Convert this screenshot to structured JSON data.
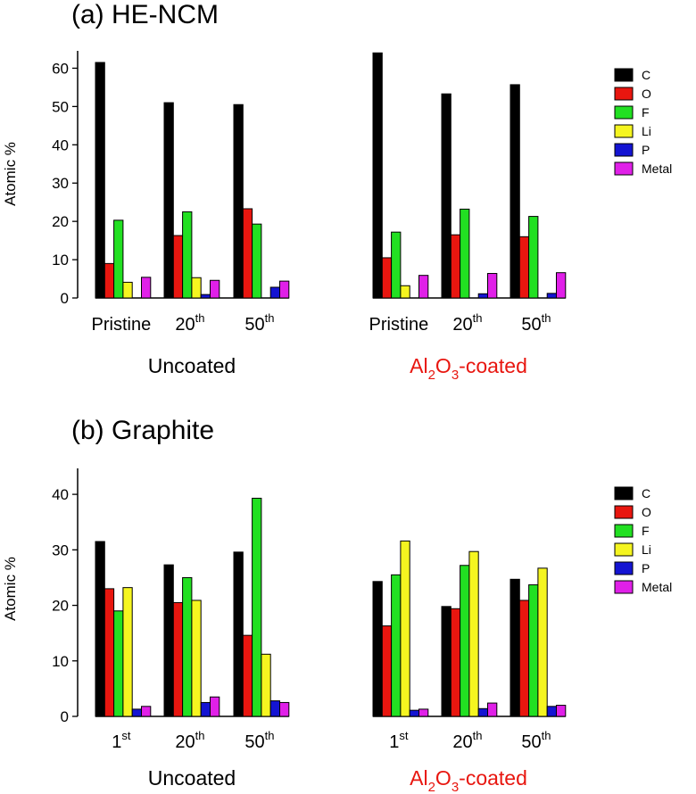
{
  "colors": {
    "C": "#000000",
    "O": "#e8160f",
    "F": "#22e022",
    "Li": "#f5f520",
    "P": "#1414d2",
    "Metal": "#e020e8",
    "coated_label": "#e8160f",
    "uncoated_label": "#000000"
  },
  "chart_data": [
    {
      "type": "bar",
      "title": "(a) HE-NCM",
      "ylabel": "Atomic %",
      "ylim": [
        0,
        65
      ],
      "yticks": [
        "0",
        "10",
        "20",
        "30",
        "40",
        "50",
        "60"
      ],
      "legend": [
        "C",
        "O",
        "F",
        "Li",
        "P",
        "Metal"
      ],
      "legend_position": "right",
      "groups": [
        {
          "name": "Uncoated",
          "categories": [
            {
              "label": "Pristine",
              "sup": ""
            },
            {
              "label": "20",
              "sup": "th"
            },
            {
              "label": "50",
              "sup": "th"
            }
          ]
        },
        {
          "name": "Al2O3-coated",
          "name_parts": [
            "Al",
            "2",
            "O",
            "3",
            "-coated"
          ],
          "categories": [
            {
              "label": "Pristine",
              "sup": ""
            },
            {
              "label": "20",
              "sup": "th"
            },
            {
              "label": "50",
              "sup": "th"
            }
          ]
        }
      ],
      "series": [
        {
          "name": "C",
          "values": [
            61.5,
            51,
            50.5,
            64,
            53.3,
            55.7
          ]
        },
        {
          "name": "O",
          "values": [
            9,
            16.3,
            23.3,
            10.5,
            16.5,
            16
          ]
        },
        {
          "name": "F",
          "values": [
            20.3,
            22.5,
            19.3,
            17.2,
            23.2,
            21.3
          ]
        },
        {
          "name": "Li",
          "values": [
            4.1,
            5.3,
            0,
            3.2,
            0,
            0
          ]
        },
        {
          "name": "P",
          "values": [
            0,
            0.9,
            2.8,
            0,
            1.1,
            1.2
          ]
        },
        {
          "name": "Metal",
          "values": [
            5.4,
            4.6,
            4.4,
            5.9,
            6.4,
            6.6
          ]
        }
      ]
    },
    {
      "type": "bar",
      "title": "(b) Graphite",
      "ylabel": "Atomic %",
      "ylim": [
        0,
        45
      ],
      "yticks": [
        "0",
        "10",
        "20",
        "30",
        "40"
      ],
      "legend": [
        "C",
        "O",
        "F",
        "Li",
        "P",
        "Metal"
      ],
      "legend_position": "right",
      "groups": [
        {
          "name": "Uncoated",
          "categories": [
            {
              "label": "1",
              "sup": "st"
            },
            {
              "label": "20",
              "sup": "th"
            },
            {
              "label": "50",
              "sup": "th"
            }
          ]
        },
        {
          "name": "Al2O3-coated",
          "name_parts": [
            "Al",
            "2",
            "O",
            "3",
            "-coated"
          ],
          "categories": [
            {
              "label": "1",
              "sup": "st"
            },
            {
              "label": "20",
              "sup": "th"
            },
            {
              "label": "50",
              "sup": "th"
            }
          ]
        }
      ],
      "series": [
        {
          "name": "C",
          "values": [
            31.5,
            27.3,
            29.6,
            24.3,
            19.8,
            24.7
          ]
        },
        {
          "name": "O",
          "values": [
            23,
            20.5,
            14.6,
            16.3,
            19.4,
            20.9
          ]
        },
        {
          "name": "F",
          "values": [
            19,
            25,
            39.3,
            25.5,
            27.2,
            23.7
          ]
        },
        {
          "name": "Li",
          "values": [
            23.2,
            20.9,
            11.2,
            31.6,
            29.7,
            26.7
          ]
        },
        {
          "name": "P",
          "values": [
            1.3,
            2.5,
            2.8,
            1.1,
            1.4,
            1.8
          ]
        },
        {
          "name": "Metal",
          "values": [
            1.8,
            3.5,
            2.5,
            1.3,
            2.4,
            2
          ]
        }
      ]
    }
  ]
}
